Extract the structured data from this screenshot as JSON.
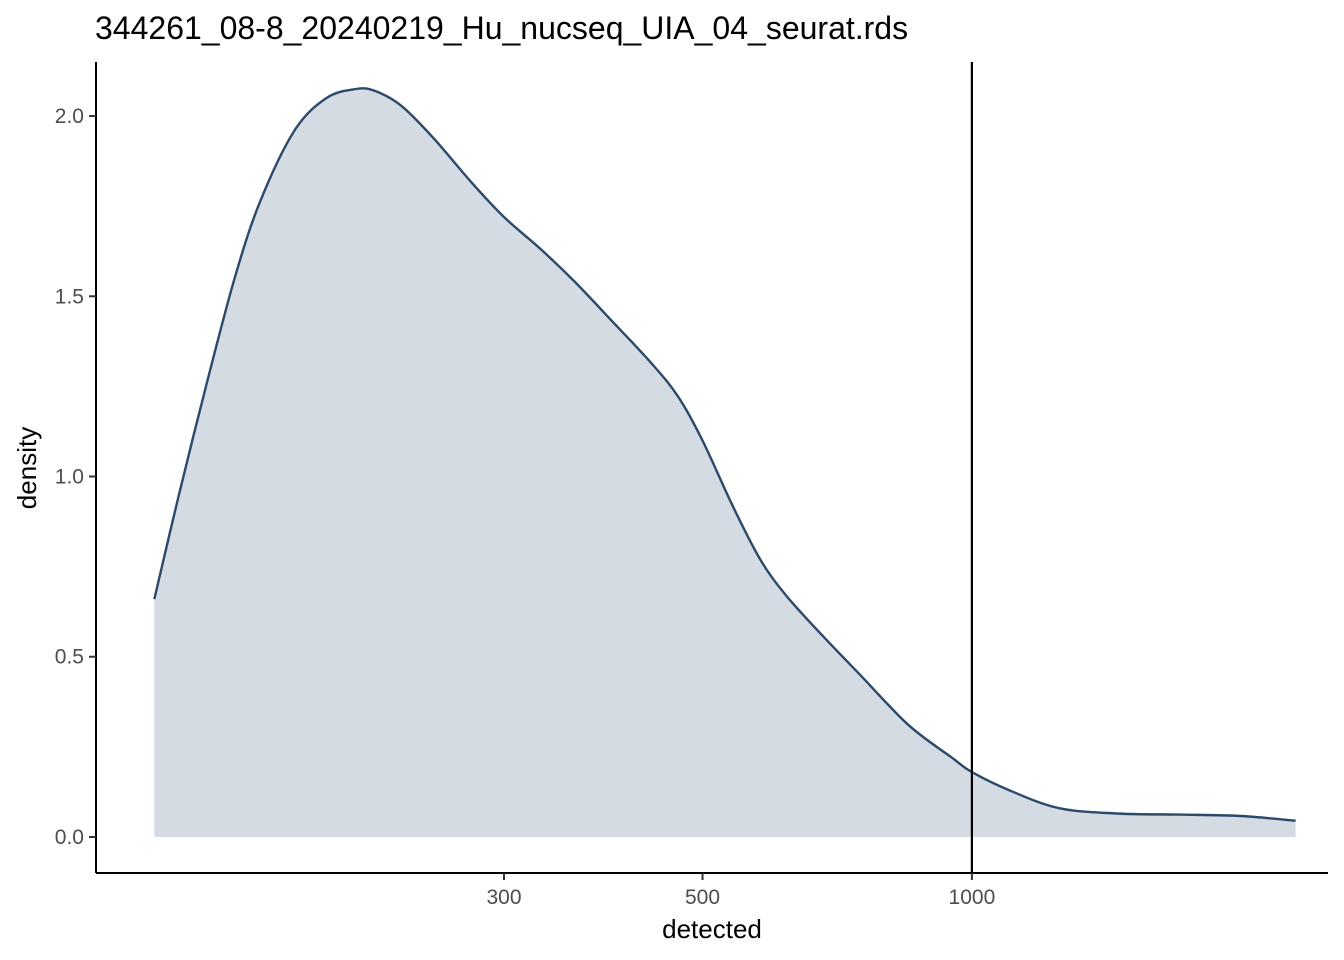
{
  "chart_data": {
    "type": "area",
    "title": "344261_08-8_20240219_Hu_nucseq_UIA_04_seurat.rds",
    "xlabel": "detected",
    "ylabel": "density",
    "x_scale": "log10",
    "xlim": [
      105,
      2500
    ],
    "ylim": [
      -0.1,
      2.15
    ],
    "x_ticks": [
      300,
      500,
      1000
    ],
    "x_tick_labels": [
      "300",
      "500",
      "1000"
    ],
    "y_ticks": [
      0.0,
      0.5,
      1.0,
      1.5,
      2.0
    ],
    "y_tick_labels": [
      "0.0",
      "0.5",
      "1.0",
      "1.5",
      "2.0"
    ],
    "grid": false,
    "legend": "none",
    "vline": {
      "x": 1000
    },
    "series": [
      {
        "x": [
          122,
          130,
          140,
          150,
          160,
          175,
          190,
          205,
          215,
          230,
          250,
          275,
          300,
          330,
          360,
          400,
          440,
          470,
          500,
          540,
          580,
          620,
          680,
          750,
          850,
          950,
          1000,
          1100,
          1250,
          1450,
          1700,
          2000,
          2300
        ],
        "y": [
          0.66,
          0.95,
          1.27,
          1.55,
          1.76,
          1.96,
          2.05,
          2.075,
          2.07,
          2.03,
          1.94,
          1.82,
          1.72,
          1.63,
          1.54,
          1.42,
          1.31,
          1.22,
          1.1,
          0.92,
          0.77,
          0.67,
          0.56,
          0.45,
          0.31,
          0.22,
          0.18,
          0.13,
          0.08,
          0.065,
          0.062,
          0.058,
          0.045
        ]
      }
    ],
    "colors": {
      "line": "#2b4a6b",
      "fill": "#d4dbe2",
      "vline": "#000000",
      "axis": "#000000"
    }
  }
}
